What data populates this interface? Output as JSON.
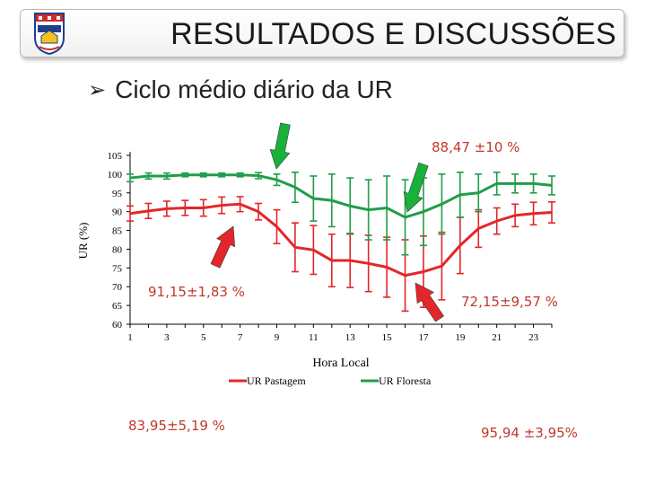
{
  "header": {
    "title": "RESULTADOS E DISCUSSÕES"
  },
  "bullet": {
    "icon": "arrow-bullet-icon",
    "text": "Ciclo médio diário da UR"
  },
  "annotations": {
    "forest_min": "88,47 ±10 %",
    "pasture_max": "91,15±1,83 %",
    "pasture_min": "72,15±9,57 %",
    "pasture_mean": "83,95±5,19 %",
    "forest_mean": "95,94 ±3,95%"
  },
  "colors": {
    "pasture": "#e3262b",
    "forest": "#1f9e4a",
    "arrow_green": "#18b23a",
    "arrow_red": "#e3262b",
    "annotation": "#c0392b"
  },
  "chart_data": {
    "type": "line",
    "xlabel": "Hora Local",
    "ylabel": "UR (%)",
    "ylim": [
      60,
      105
    ],
    "yticks": [
      60,
      65,
      70,
      75,
      80,
      85,
      90,
      95,
      100,
      105
    ],
    "xticks": [
      1,
      3,
      5,
      7,
      9,
      11,
      13,
      15,
      17,
      19,
      21,
      23
    ],
    "xlim": [
      1,
      24
    ],
    "legend_position": "bottom",
    "x": [
      1,
      2,
      3,
      4,
      5,
      6,
      7,
      8,
      9,
      10,
      11,
      12,
      13,
      14,
      15,
      16,
      17,
      18,
      19,
      20,
      21,
      22,
      23,
      24
    ],
    "series": [
      {
        "name": "UR Pastagem",
        "color": "#e3262b",
        "values": [
          89.5,
          90.2,
          90.8,
          91.0,
          91.0,
          91.7,
          92.0,
          90.0,
          86.0,
          80.5,
          79.8,
          77.0,
          77.0,
          76.2,
          75.2,
          73.0,
          74.0,
          75.5,
          81.0,
          85.5,
          87.5,
          89.0,
          89.5,
          89.8
        ],
        "errors": [
          2.0,
          2.0,
          2.0,
          2.0,
          2.2,
          2.2,
          2.0,
          2.2,
          4.5,
          6.5,
          6.5,
          7.0,
          7.2,
          7.5,
          8.0,
          9.5,
          9.5,
          9.0,
          7.5,
          5.0,
          3.5,
          3.0,
          3.0,
          2.8
        ]
      },
      {
        "name": "UR Floresta",
        "color": "#1f9e4a",
        "values": [
          99.0,
          99.5,
          99.5,
          99.8,
          99.8,
          99.8,
          99.8,
          99.6,
          98.5,
          96.5,
          93.5,
          93.0,
          91.5,
          90.5,
          91.0,
          88.5,
          90.0,
          92.0,
          94.5,
          95.0,
          97.5,
          97.5,
          97.5,
          97.0
        ],
        "errors": [
          1.0,
          0.8,
          0.8,
          0.5,
          0.5,
          0.5,
          0.5,
          0.8,
          1.5,
          4.0,
          6.0,
          7.0,
          7.5,
          8.0,
          8.5,
          10.0,
          9.0,
          8.0,
          6.0,
          5.0,
          3.0,
          2.5,
          2.5,
          2.5
        ]
      }
    ]
  }
}
